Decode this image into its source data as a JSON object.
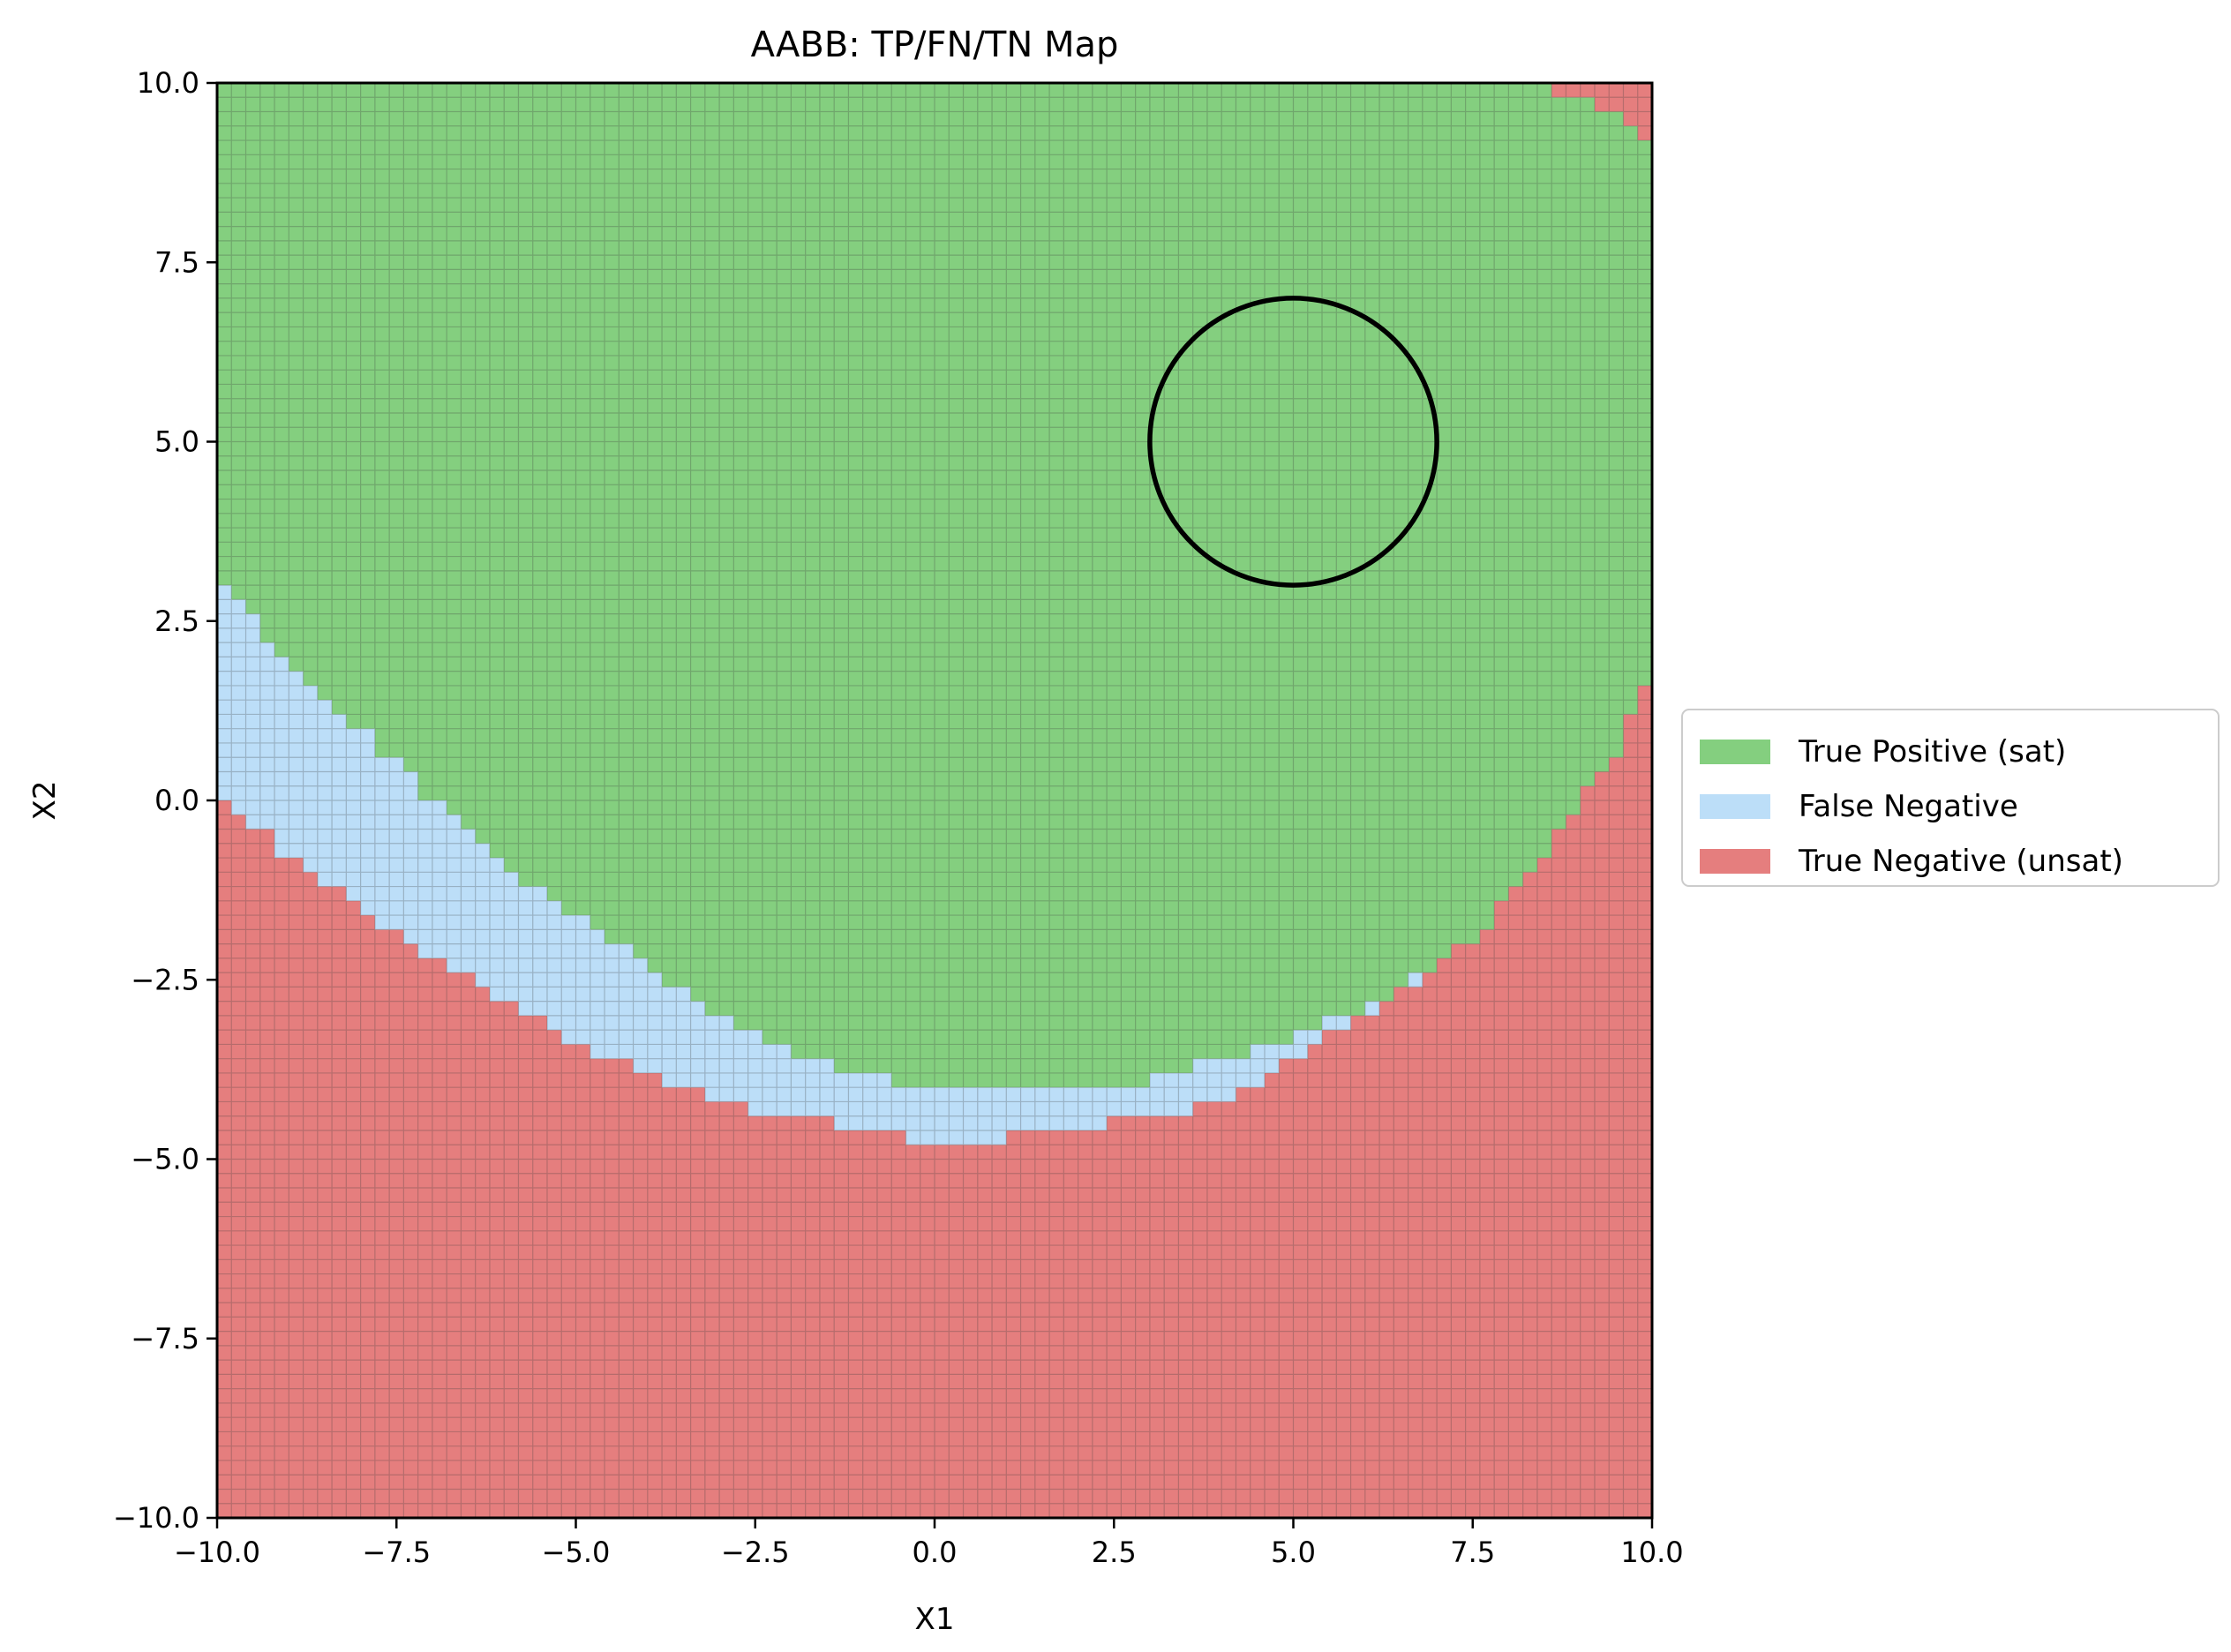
{
  "chart_data": {
    "type": "heatmap",
    "title": "AABB: TP/FN/TN Map",
    "xlabel": "X1",
    "ylabel": "X2",
    "xlim": [
      -10,
      10
    ],
    "ylim": [
      -10,
      10
    ],
    "x_ticks": [
      "−10.0",
      "−7.5",
      "−5.0",
      "−2.5",
      "0.0",
      "2.5",
      "5.0",
      "7.5",
      "10.0"
    ],
    "y_ticks": [
      "−10.0",
      "−7.5",
      "−5.0",
      "−2.5",
      "0.0",
      "2.5",
      "5.0",
      "7.5",
      "10.0"
    ],
    "x_tick_values": [
      -10,
      -7.5,
      -5,
      -2.5,
      0,
      2.5,
      5,
      7.5,
      10
    ],
    "y_tick_values": [
      -10,
      -7.5,
      -5,
      -2.5,
      0,
      2.5,
      5,
      7.5,
      10
    ],
    "grid_resolution": 100,
    "legend_position": "right",
    "legend": [
      {
        "label": "True Positive (sat)",
        "color": "#84cf7f"
      },
      {
        "label": "False Negative",
        "color": "#bcdef8"
      },
      {
        "label": "True Negative (unsat)",
        "color": "#e57e7e"
      }
    ],
    "circle": {
      "center": [
        5,
        5
      ],
      "radius": 2,
      "color": "#000000"
    },
    "boundary_x": [
      -10,
      -9,
      -8,
      -7,
      -6,
      -5,
      -4,
      -3,
      -2,
      -1,
      0,
      1,
      2,
      3,
      4,
      5,
      6,
      7,
      7.5,
      8,
      8.5,
      9,
      9.5,
      10
    ],
    "green_lower_boundary_y": [
      3.2,
      1.9,
      1.0,
      0.0,
      -0.9,
      -1.6,
      -2.3,
      -3.0,
      -3.5,
      -3.8,
      -4.0,
      -4.1,
      -4.1,
      -3.9,
      -3.6,
      -3.3,
      -2.9,
      -2.3,
      -1.9,
      -1.4,
      -0.8,
      0.0,
      0.7,
      1.9
    ],
    "fn_lower_boundary_y": [
      0.2,
      -0.8,
      -1.5,
      -2.2,
      -2.8,
      -3.4,
      -3.8,
      -4.2,
      -4.4,
      -4.6,
      -4.8,
      -4.7,
      -4.6,
      -4.4,
      -4.2,
      -3.6,
      -3.0,
      -2.4,
      -1.9,
      -1.4,
      -0.8,
      0.0,
      0.7,
      1.9
    ],
    "top_right_unsat": {
      "x": [
        8.3,
        9.0,
        9.5,
        10.0
      ],
      "y_min": [
        10.0,
        9.8,
        9.5,
        9.2
      ]
    }
  }
}
